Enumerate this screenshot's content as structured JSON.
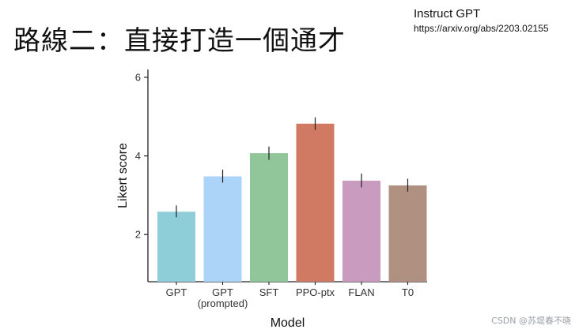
{
  "slide": {
    "title": "路線二：直接打造一個通才",
    "ref_title": "Instruct GPT",
    "ref_url": "https://arxiv.org/abs/2203.02155",
    "watermark": "CSDN @苏堤春不晓"
  },
  "chart_data": {
    "type": "bar",
    "xlabel": "Model",
    "ylabel": "Likert score",
    "ylim": [
      0.8,
      6.2
    ],
    "yticks": [
      2,
      4,
      6
    ],
    "grid": false,
    "legend": "none",
    "categories": [
      {
        "label": "GPT",
        "sublabel": "",
        "value": 2.58,
        "err_low": 2.44,
        "err_high": 2.74,
        "color": "#8dced9"
      },
      {
        "label": "GPT",
        "sublabel": "(prompted)",
        "value": 3.48,
        "err_low": 3.32,
        "err_high": 3.65,
        "color": "#acd3f8"
      },
      {
        "label": "SFT",
        "sublabel": "",
        "value": 4.07,
        "err_low": 3.9,
        "err_high": 4.24,
        "color": "#91c59a"
      },
      {
        "label": "PPO-ptx",
        "sublabel": "",
        "value": 4.82,
        "err_low": 4.66,
        "err_high": 4.98,
        "color": "#d17a63"
      },
      {
        "label": "FLAN",
        "sublabel": "",
        "value": 3.37,
        "err_low": 3.2,
        "err_high": 3.55,
        "color": "#c99cbf"
      },
      {
        "label": "T0",
        "sublabel": "",
        "value": 3.25,
        "err_low": 3.09,
        "err_high": 3.42,
        "color": "#b09181"
      }
    ]
  }
}
